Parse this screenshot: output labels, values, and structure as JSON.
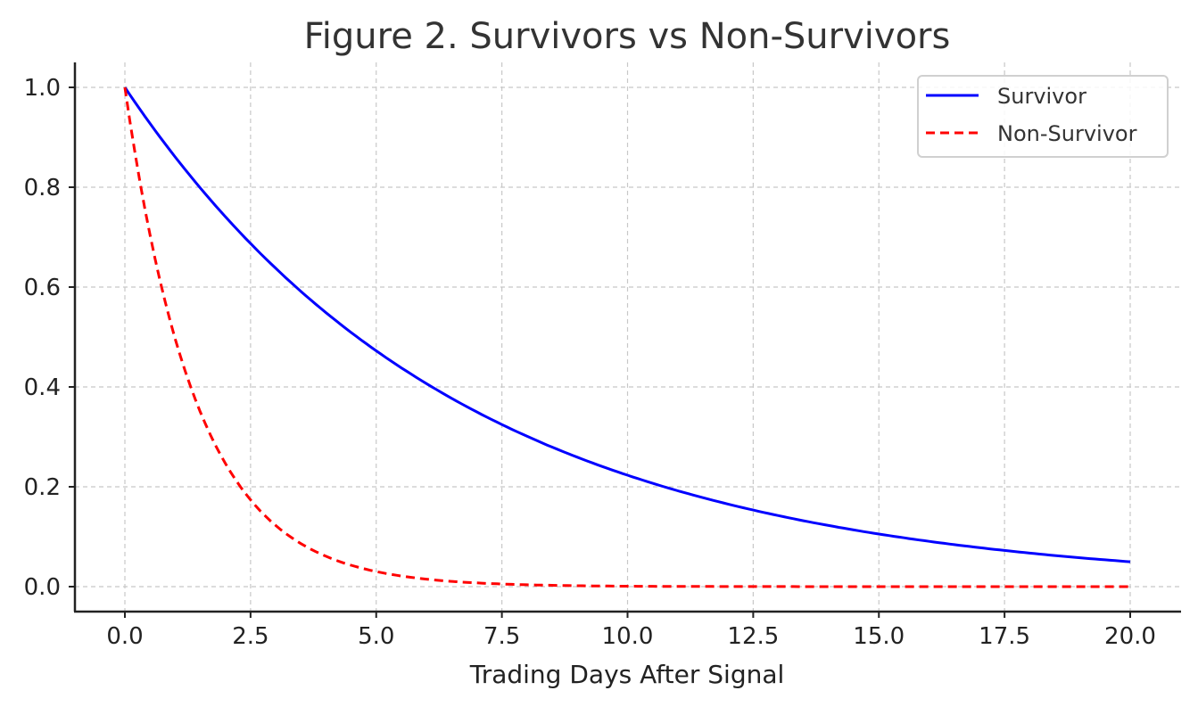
{
  "chart_data": {
    "type": "line",
    "title": "Figure 2. Survivors vs Non-Survivors",
    "xlabel": "Trading Days After Signal",
    "ylabel": "",
    "xlim": [
      -1,
      21
    ],
    "ylim": [
      -0.05,
      1.05
    ],
    "xticks": [
      "0.0",
      "2.5",
      "5.0",
      "7.5",
      "10.0",
      "12.5",
      "15.0",
      "17.5",
      "20.0"
    ],
    "yticks": [
      "0.0",
      "0.2",
      "0.4",
      "0.6",
      "0.8",
      "1.0"
    ],
    "grid": true,
    "legend_position": "upper right",
    "x": [
      0,
      1,
      2,
      3,
      4,
      5,
      6,
      7,
      8,
      9,
      10,
      11,
      12,
      13,
      14,
      15,
      16,
      17,
      18,
      19,
      20
    ],
    "series": [
      {
        "name": "Survivor",
        "color": "#0000ff",
        "style": "solid",
        "values": [
          1.0,
          0.861,
          0.741,
          0.638,
          0.549,
          0.472,
          0.407,
          0.35,
          0.301,
          0.259,
          0.223,
          0.192,
          0.165,
          0.142,
          0.122,
          0.105,
          0.091,
          0.078,
          0.067,
          0.058,
          0.05
        ]
      },
      {
        "name": "Non-Survivor",
        "color": "#ff0000",
        "style": "dashed",
        "values": [
          1.0,
          0.497,
          0.247,
          0.122,
          0.061,
          0.03,
          0.015,
          0.007,
          0.004,
          0.002,
          0.001,
          0.0,
          0.0,
          0.0,
          0.0,
          0.0,
          0.0,
          0.0,
          0.0,
          0.0,
          0.0
        ]
      }
    ]
  }
}
